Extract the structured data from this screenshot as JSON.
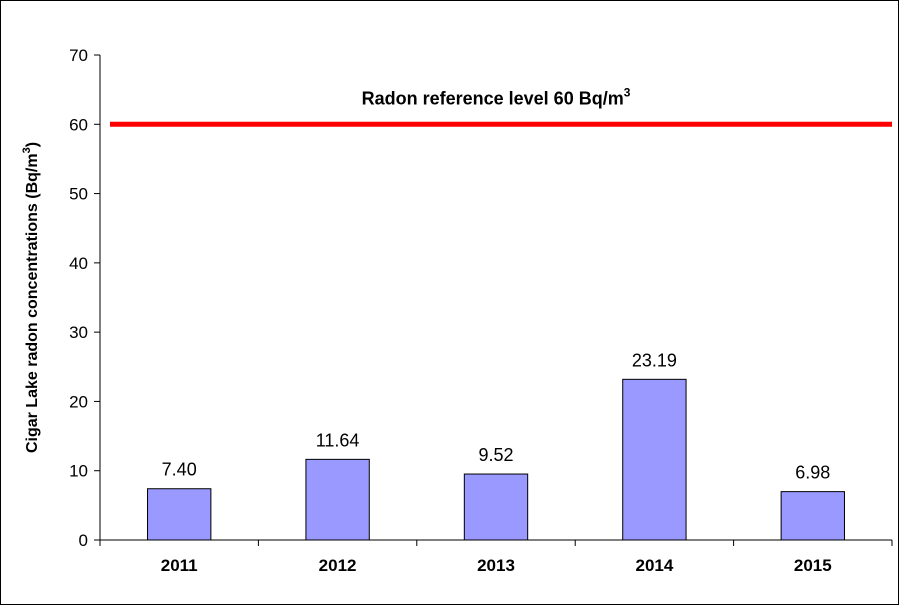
{
  "chart_data": {
    "type": "bar",
    "categories": [
      "2011",
      "2012",
      "2013",
      "2014",
      "2015"
    ],
    "values": [
      7.4,
      11.64,
      9.52,
      23.19,
      6.98
    ],
    "value_labels": [
      "7.40",
      "11.64",
      "9.52",
      "23.19",
      "6.98"
    ],
    "ylabel_main": "Cigar Lake radon concentrations (Bq/m",
    "ylabel_sup": "3",
    "ylabel_close": ")",
    "ylim": [
      0,
      70
    ],
    "yticks": [
      0,
      10,
      20,
      30,
      40,
      50,
      60,
      70
    ],
    "grid": false,
    "bar_color": "#9999ff",
    "reference_line": {
      "value": 60,
      "label_main": "Radon reference level 60 Bq/m",
      "label_sup": "3",
      "color": "#ff0000"
    }
  }
}
